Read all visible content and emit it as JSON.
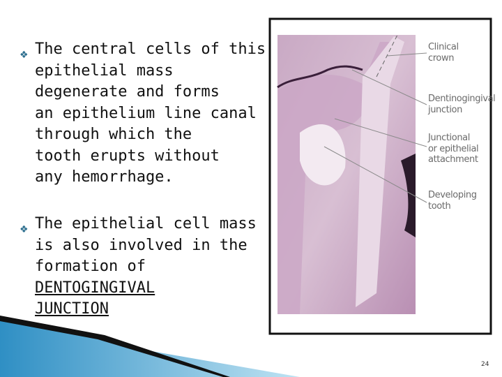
{
  "bullets": [
    {
      "lines": [
        "The central cells of this",
        "epithelial mass",
        "degenerate and forms",
        "an epithelium line canal",
        "through which the",
        "tooth erupts without",
        "any hemorrhage."
      ]
    },
    {
      "lines": [
        "The epithelial cell mass",
        "is also involved in the",
        "formation of"
      ],
      "underlined": [
        "DENTOGINGIVAL",
        "JUNCTION"
      ]
    }
  ],
  "figure": {
    "labels": [
      {
        "lines": [
          "Clinical",
          "crown"
        ]
      },
      {
        "lines": [
          "Dentinogingival",
          "junction"
        ]
      },
      {
        "lines": [
          "Junctional",
          "or epithelial",
          "attachment"
        ]
      },
      {
        "lines": [
          "Developing",
          "tooth"
        ]
      }
    ]
  },
  "page_number": "24"
}
